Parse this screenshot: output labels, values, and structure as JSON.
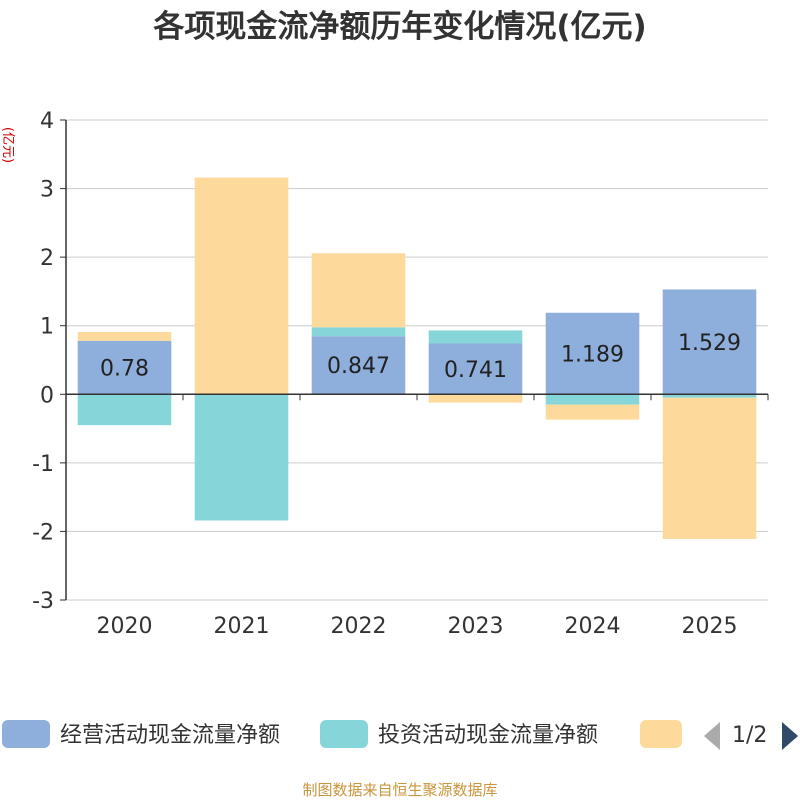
{
  "chart_data": {
    "type": "bar",
    "stacked": true,
    "title": "各项现金流净额历年变化情况(亿元)",
    "unit_label": "(亿元)",
    "categories": [
      "2020",
      "2021",
      "2022",
      "2023",
      "2024",
      "2025"
    ],
    "ylim": [
      -3,
      4
    ],
    "yticks": [
      4,
      3,
      2,
      1,
      0,
      -1,
      -2,
      -3
    ],
    "grid": true,
    "series": [
      {
        "name": "经营活动现金流量净额",
        "color": "#8eaedc",
        "values": [
          0.78,
          0.0,
          0.847,
          0.741,
          1.189,
          1.529
        ],
        "labels": [
          "0.78",
          "",
          "0.847",
          "0.741",
          "1.189",
          "1.529"
        ]
      },
      {
        "name": "投资活动现金流量净额",
        "color": "#86d5d9",
        "values": [
          -0.45,
          -1.84,
          0.13,
          0.19,
          -0.15,
          -0.05
        ]
      },
      {
        "name": "",
        "color": "#fdd99b",
        "values": [
          0.13,
          3.16,
          1.08,
          -0.12,
          -0.22,
          -2.06
        ]
      }
    ],
    "legend": {
      "placement": "bottom",
      "page": "1/2"
    }
  },
  "source": "制图数据来自恒生聚源数据库",
  "icons": {
    "prev": "triangle-left-icon",
    "next": "triangle-right-icon"
  }
}
